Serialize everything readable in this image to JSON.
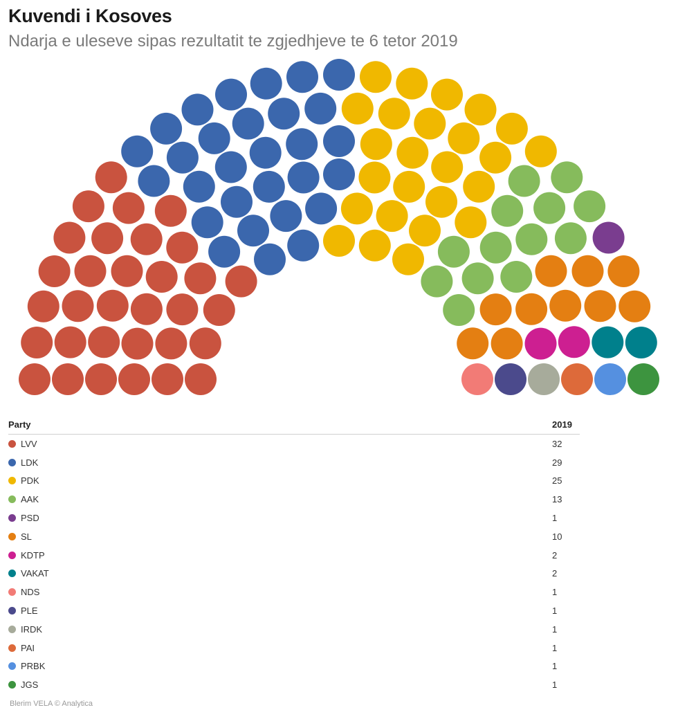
{
  "title": "Kuvendi i Kosoves",
  "subtitle": "Ndarja e uleseve sipas rezultatit te zgjedhjeve te 6 tetor 2019",
  "credit": "Blerim VELA © Analytica",
  "chart_data": {
    "type": "parliament",
    "total_seats": 120,
    "legend_header": {
      "party": "Party",
      "value": "2019"
    },
    "series": [
      {
        "name": "LVV",
        "value": 32,
        "color": "#c9533f"
      },
      {
        "name": "LDK",
        "value": 29,
        "color": "#3b67ad"
      },
      {
        "name": "PDK",
        "value": 25,
        "color": "#f0b800"
      },
      {
        "name": "AAK",
        "value": 13,
        "color": "#86bb5c"
      },
      {
        "name": "PSD",
        "value": 1,
        "color": "#7a3d8f"
      },
      {
        "name": "SL",
        "value": 10,
        "color": "#e47f12"
      },
      {
        "name": "KDTP",
        "value": 2,
        "color": "#cd1f91"
      },
      {
        "name": "VAKAT",
        "value": 2,
        "color": "#00808c"
      },
      {
        "name": "NDS",
        "value": 1,
        "color": "#f27b76"
      },
      {
        "name": "PLE",
        "value": 1,
        "color": "#4b4a8c"
      },
      {
        "name": "IRDK",
        "value": 1,
        "color": "#a7ab9b"
      },
      {
        "name": "PAI",
        "value": 1,
        "color": "#dd6a3a"
      },
      {
        "name": "PRBK",
        "value": 1,
        "color": "#5590e0"
      },
      {
        "name": "JGS",
        "value": 1,
        "color": "#3d943f"
      }
    ]
  }
}
